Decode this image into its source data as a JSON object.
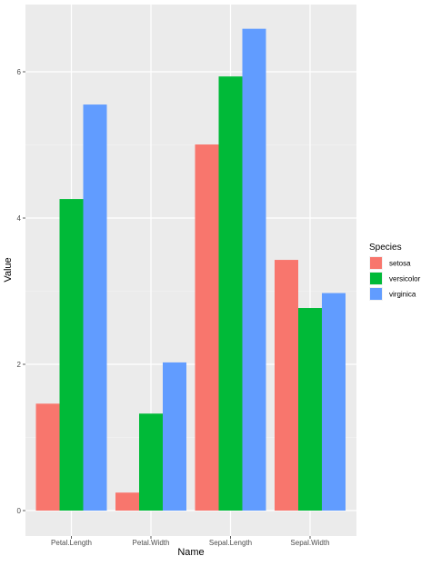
{
  "chart_data": {
    "type": "bar",
    "xlabel": "Name",
    "ylabel": "Value",
    "categories": [
      "Petal.Length",
      "Petal.Width",
      "Sepal.Length",
      "Sepal.Width"
    ],
    "ylim": [
      0,
      6.9
    ],
    "yticks": [
      0,
      2,
      4,
      6
    ],
    "grid": true,
    "legend": {
      "title": "Species",
      "position": "right"
    },
    "series": [
      {
        "name": "setosa",
        "color": "#F8766D",
        "values": [
          1.462,
          0.246,
          5.006,
          3.428
        ]
      },
      {
        "name": "versicolor",
        "color": "#00BA38",
        "values": [
          4.26,
          1.326,
          5.936,
          2.77
        ]
      },
      {
        "name": "virginica",
        "color": "#619CFF",
        "values": [
          5.552,
          2.026,
          6.588,
          2.974
        ]
      }
    ]
  }
}
